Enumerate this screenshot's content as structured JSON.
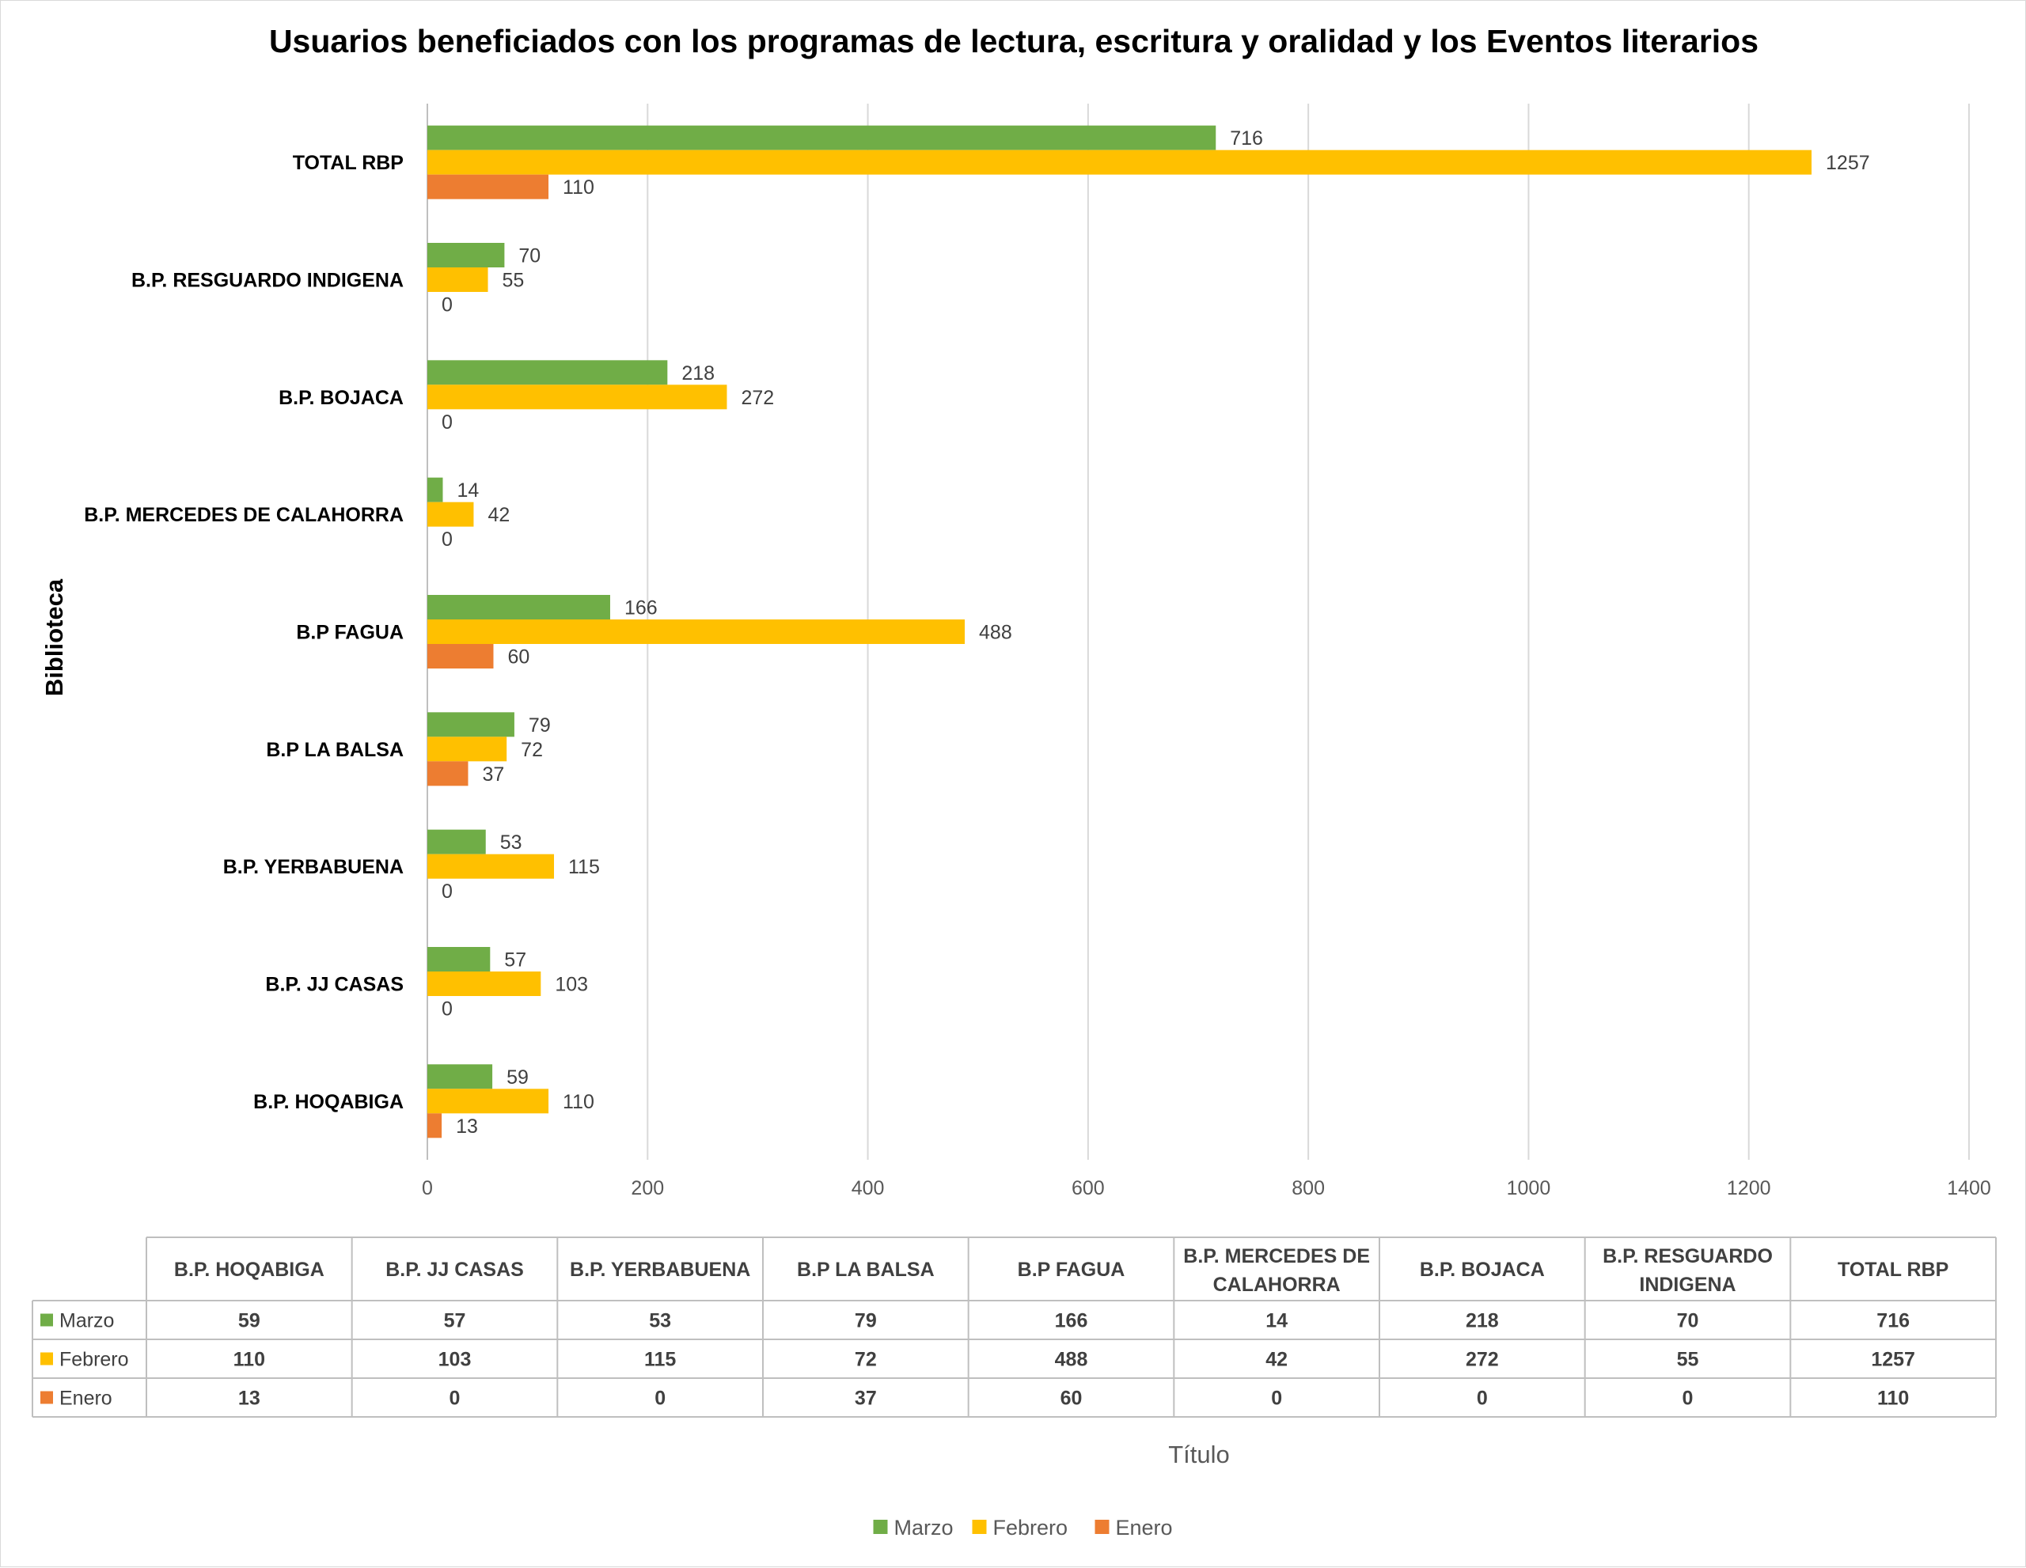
{
  "chart_data": {
    "type": "bar",
    "orientation": "horizontal",
    "title": "Usuarios beneficiados con los programas de lectura, escritura y oralidad y los Eventos literarios",
    "xlabel": "Título",
    "ylabel": "Biblioteca",
    "xlim": [
      0,
      1400
    ],
    "xticks": [
      0,
      200,
      400,
      600,
      800,
      1000,
      1200,
      1400
    ],
    "grid": true,
    "legend_position": "bottom",
    "categories": [
      "B.P.  HOQABIGA",
      "B.P. JJ CASAS",
      "B.P. YERBABUENA",
      "B.P LA BALSA",
      "B.P FAGUA",
      "B.P. MERCEDES DE CALAHORRA",
      "B.P.  BOJACA",
      "B.P. RESGUARDO INDIGENA",
      "TOTAL RBP"
    ],
    "table_headers": [
      [
        "B.P.  HOQABIGA"
      ],
      [
        "B.P. JJ CASAS"
      ],
      [
        "B.P. YERBABUENA"
      ],
      [
        "B.P LA BALSA"
      ],
      [
        "B.P FAGUA"
      ],
      [
        "B.P. MERCEDES DE",
        "CALAHORRA"
      ],
      [
        "B.P.  BOJACA"
      ],
      [
        "B.P. RESGUARDO",
        "INDIGENA"
      ],
      [
        "TOTAL RBP"
      ]
    ],
    "series": [
      {
        "name": "Marzo",
        "color": "#70ad47",
        "values": [
          59,
          57,
          53,
          79,
          166,
          14,
          218,
          70,
          716
        ]
      },
      {
        "name": "Febrero",
        "color": "#ffc000",
        "values": [
          110,
          103,
          115,
          72,
          488,
          42,
          272,
          55,
          1257
        ]
      },
      {
        "name": "Enero",
        "color": "#ed7d31",
        "values": [
          13,
          0,
          0,
          37,
          60,
          0,
          0,
          0,
          110
        ]
      }
    ]
  }
}
